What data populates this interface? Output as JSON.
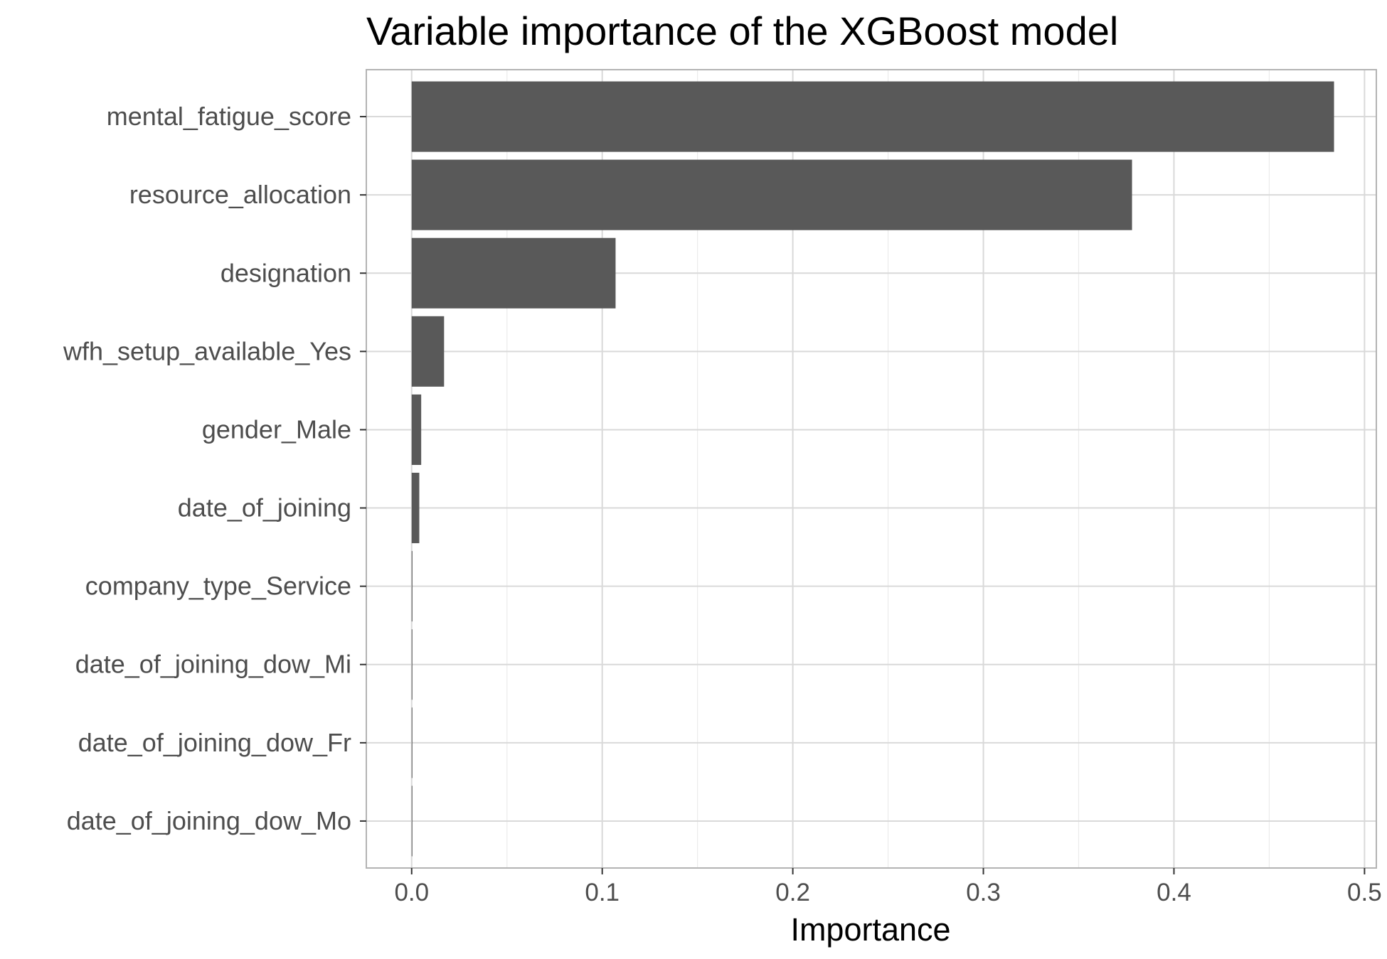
{
  "chart_data": {
    "type": "bar",
    "orientation": "horizontal",
    "title": "Variable importance of the XGBoost model",
    "xlabel": "Importance",
    "ylabel": "",
    "categories": [
      "mental_fatigue_score",
      "resource_allocation",
      "designation",
      "wfh_setup_available_Yes",
      "gender_Male",
      "date_of_joining",
      "company_type_Service",
      "date_of_joining_dow_Mi",
      "date_of_joining_dow_Fr",
      "date_of_joining_dow_Mo"
    ],
    "values": [
      0.484,
      0.378,
      0.107,
      0.017,
      0.005,
      0.004,
      0.0004,
      0.0003,
      0.0002,
      0.0002
    ],
    "xlim": [
      -0.0238,
      0.5062
    ],
    "xticks": [
      0.0,
      0.1,
      0.2,
      0.3,
      0.4,
      0.5
    ],
    "xtick_labels": [
      "0.0",
      "0.1",
      "0.2",
      "0.3",
      "0.4",
      "0.5"
    ],
    "grid": true,
    "legend": "none",
    "colors": {
      "bar": "#595959",
      "grid_major": "#d9d9d9",
      "grid_minor": "#ebebeb",
      "panel_border": "#b3b3b3",
      "tick_text": "#4d4d4d"
    }
  }
}
